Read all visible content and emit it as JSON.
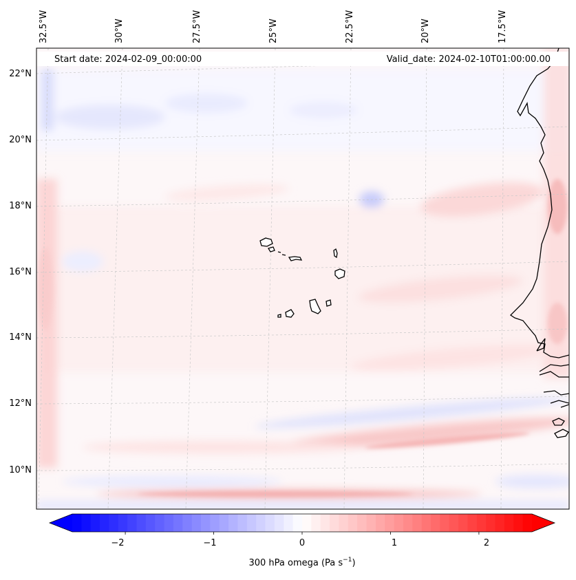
{
  "header": {
    "start_date": "Start date: 2024-02-09_00:00:00",
    "valid_date": "Valid_date: 2024-02-10T01:00:00.00"
  },
  "map": {
    "longitude_labels": [
      "32.5°W",
      "30°W",
      "27.5°W",
      "25°W",
      "22.5°W",
      "20°W",
      "17.5°W"
    ],
    "latitude_labels": [
      "22°N",
      "20°N",
      "18°N",
      "16°N",
      "14°N",
      "12°N",
      "10°N"
    ],
    "coastline_color": "#000000",
    "gridline_color": "#c8c8c8"
  },
  "colorbar": {
    "label_text": "300 hPa omega (Pa s",
    "label_exponent": "−1",
    "label_suffix": ")",
    "tick_labels": [
      "−2",
      "−1",
      "0",
      "1",
      "2"
    ],
    "range": [
      -2.6,
      2.6
    ],
    "low_color": "#0000ff",
    "mid_color": "#ffffff",
    "high_color": "#ff0000"
  }
}
